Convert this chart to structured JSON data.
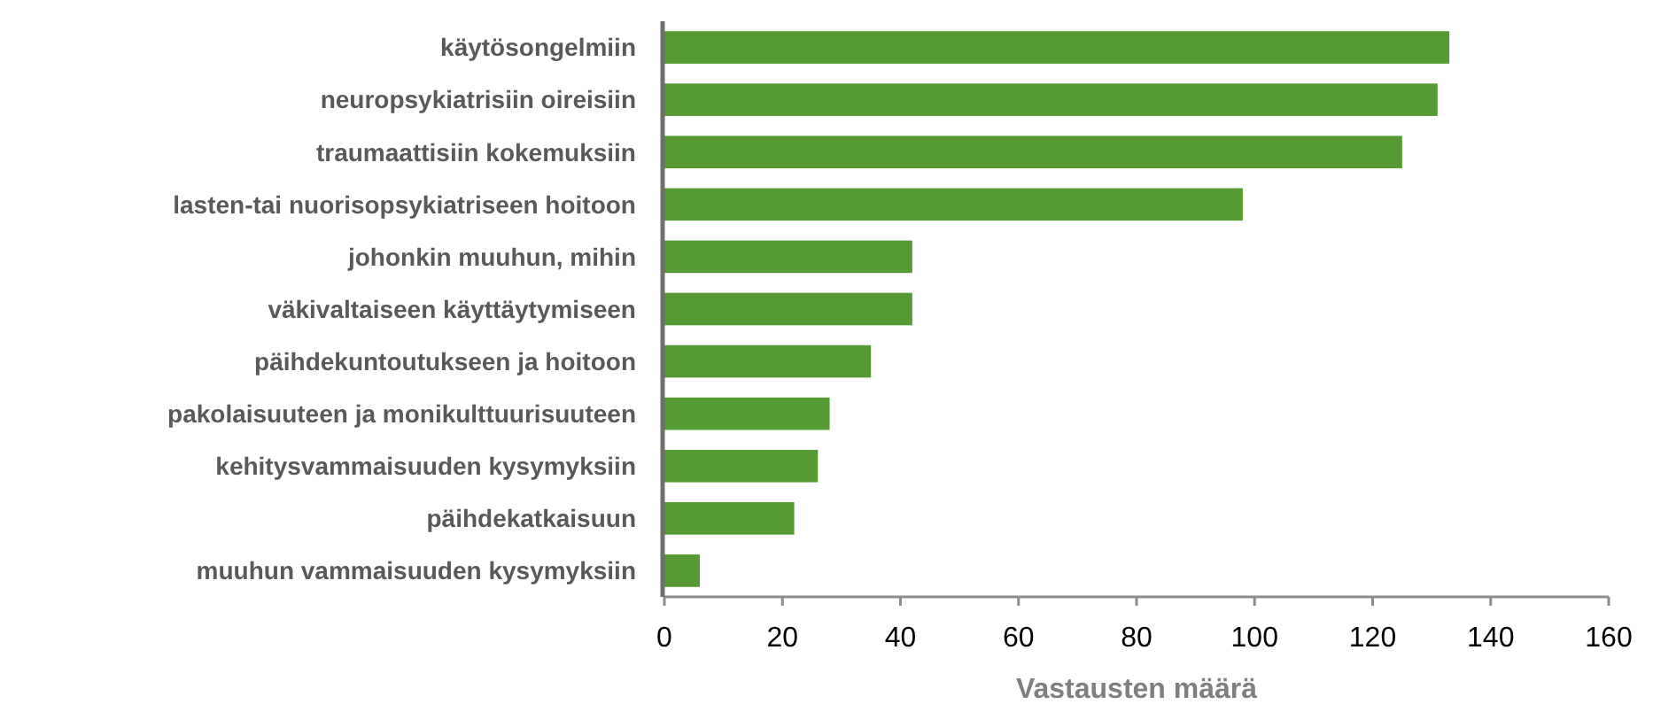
{
  "chart_data": {
    "type": "bar",
    "orientation": "horizontal",
    "xlabel": "Vastausten määrä",
    "categories": [
      "käytösongelmiin",
      "neuropsykiatrisiin oireisiin",
      "traumaattisiin kokemuksiin",
      "lasten-tai nuorisopsykiatriseen hoitoon",
      "johonkin muuhun, mihin",
      "väkivaltaiseen käyttäytymiseen",
      "päihdekuntoutukseen ja hoitoon",
      "pakolaisuuteen ja monikulttuurisuuteen",
      "kehitysvammaisuuden kysymyksiin",
      "päihdekatkaisuun",
      "muuhun vammaisuuden kysymyksiin"
    ],
    "values": [
      133,
      131,
      125,
      98,
      42,
      42,
      35,
      28,
      26,
      22,
      6
    ],
    "color": "#559a32",
    "xlim": [
      0,
      160
    ],
    "xticks": [
      0,
      20,
      40,
      60,
      80,
      100,
      120,
      140,
      160
    ],
    "grid": false
  }
}
